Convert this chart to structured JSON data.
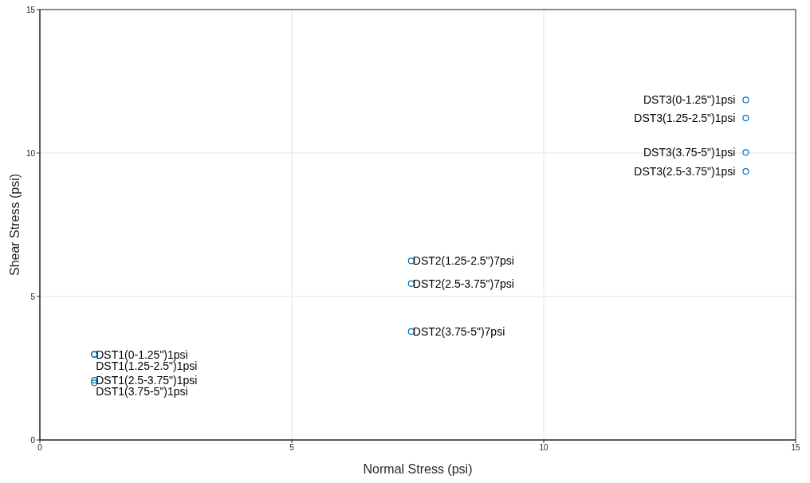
{
  "chart_data": {
    "type": "scatter",
    "xlabel": "Normal Stress (psi)",
    "ylabel": "Shear Stress (psi)",
    "x": [
      1.08,
      1.08,
      1.08,
      1.08,
      7.37,
      7.37,
      7.37,
      14.01,
      14.01,
      14.01,
      14.01
    ],
    "values": [
      2.98,
      2.98,
      2.08,
      1.99,
      6.24,
      5.45,
      3.78,
      11.85,
      11.22,
      10.02,
      9.36
    ],
    "color": "#0072bd",
    "marker": "circle",
    "xlim": [
      0,
      15
    ],
    "ylim": [
      0,
      15
    ],
    "xticks": [
      0,
      5,
      10,
      15
    ],
    "yticks": [
      0,
      5,
      10,
      15
    ],
    "grid": true,
    "legend": false,
    "annotations": [
      {
        "text": "DST1(0-1.25\")1psi",
        "x": 1.08,
        "y": 2.98
      },
      {
        "text": "DST1(1.25-2.5\")1psi",
        "x": 1.08,
        "y": 2.98
      },
      {
        "text": "DST1(2.5-3.75\")1psi",
        "x": 1.08,
        "y": 2.08
      },
      {
        "text": "DST1(3.75-5\")1psi",
        "x": 1.08,
        "y": 1.99
      },
      {
        "text": "DST2(1.25-2.5\")7psi",
        "x": 7.37,
        "y": 6.24
      },
      {
        "text": "DST2(2.5-3.75\")7psi",
        "x": 7.37,
        "y": 5.45
      },
      {
        "text": "DST2(3.75-5\")7psi",
        "x": 7.37,
        "y": 3.78
      },
      {
        "text": "DST3(0-1.25\")1psi",
        "x": 14.01,
        "y": 11.85
      },
      {
        "text": "DST3(1.25-2.5\")1psi",
        "x": 14.01,
        "y": 11.22
      },
      {
        "text": "DST3(3.75-5\")1psi",
        "x": 14.01,
        "y": 10.02
      },
      {
        "text": "DST3(2.5-3.75\")1psi",
        "x": 14.01,
        "y": 9.36
      }
    ]
  }
}
